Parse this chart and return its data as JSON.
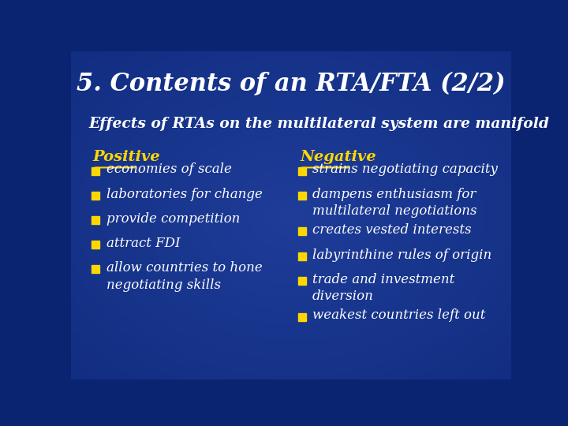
{
  "title": "5. Contents of an RTA/FTA (2/2)",
  "subtitle": "Effects of RTAs on the multilateral system are manifold",
  "bg_color": "#0a2472",
  "title_color": "#ffffff",
  "subtitle_color": "#ffffff",
  "header_color": "#FFD700",
  "bullet_color": "#FFD700",
  "text_color": "#ffffff",
  "positive_header": "Positive",
  "negative_header": "Negative",
  "positive_items": [
    [
      "economies of scale"
    ],
    [
      "laboratories for change"
    ],
    [
      "provide competition"
    ],
    [
      "attract FDI"
    ],
    [
      "allow countries to hone",
      "negotiating skills"
    ]
  ],
  "negative_items": [
    [
      "strains negotiating capacity"
    ],
    [
      "dampens enthusiasm for",
      "multilateral negotiations"
    ],
    [
      "creates vested interests"
    ],
    [
      "labyrinthine rules of origin"
    ],
    [
      "trade and investment",
      "diversion"
    ],
    [
      "weakest countries left out"
    ]
  ]
}
